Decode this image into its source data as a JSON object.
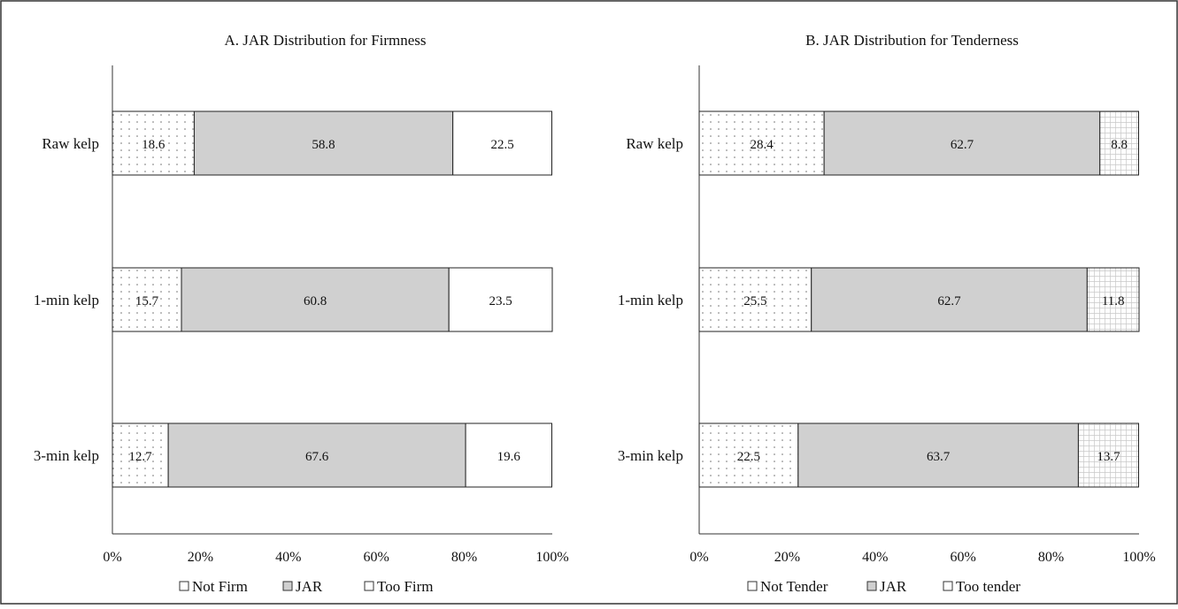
{
  "chart_data": [
    {
      "type": "bar",
      "stacked": true,
      "orientation": "horizontal",
      "title": "A. JAR Distribution for Firmness",
      "categories": [
        "Raw kelp",
        "1-min kelp",
        "3-min kelp"
      ],
      "series": [
        {
          "name": "Not Firm",
          "values": [
            18.6,
            15.7,
            12.7
          ],
          "pattern": "dots",
          "color": "#ffffff"
        },
        {
          "name": "JAR",
          "values": [
            58.8,
            60.8,
            67.6
          ],
          "pattern": "solid",
          "color": "#d0d0d0"
        },
        {
          "name": "Too Firm",
          "values": [
            22.5,
            23.5,
            19.6
          ],
          "pattern": "none",
          "color": "#ffffff"
        }
      ],
      "x_ticks": [
        "0%",
        "20%",
        "40%",
        "60%",
        "80%",
        "100%"
      ],
      "xlim": [
        0,
        100
      ],
      "grid": false,
      "legend_position": "bottom"
    },
    {
      "type": "bar",
      "stacked": true,
      "orientation": "horizontal",
      "title": "B. JAR Distribution for Tenderness",
      "categories": [
        "Raw kelp",
        "1-min kelp",
        "3-min kelp"
      ],
      "series": [
        {
          "name": "Not Tender",
          "values": [
            28.4,
            25.5,
            22.5
          ],
          "pattern": "dots",
          "color": "#ffffff"
        },
        {
          "name": "JAR",
          "values": [
            62.7,
            62.7,
            63.7
          ],
          "pattern": "solid",
          "color": "#d0d0d0"
        },
        {
          "name": "Too tender",
          "values": [
            8.8,
            11.8,
            13.7
          ],
          "pattern": "grid",
          "color": "#ffffff"
        }
      ],
      "x_ticks": [
        "0%",
        "20%",
        "40%",
        "60%",
        "80%",
        "100%"
      ],
      "xlim": [
        0,
        100
      ],
      "grid": false,
      "legend_position": "bottom"
    }
  ]
}
